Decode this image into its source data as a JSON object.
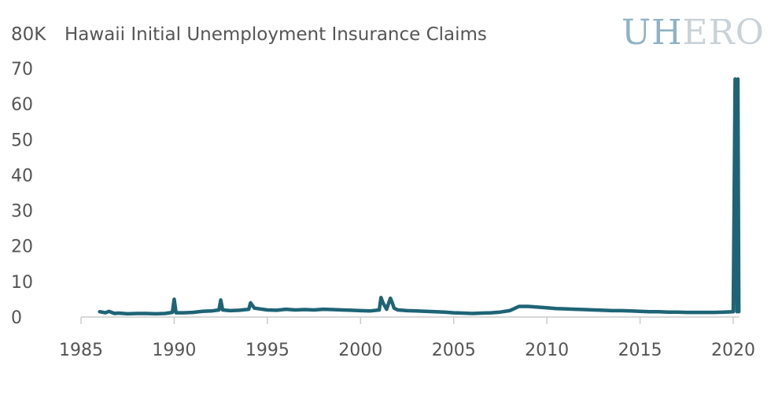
{
  "chart_data": {
    "type": "line",
    "title": "Hawaii Initial Unemployment Insurance Claims",
    "ylabel": "",
    "unit_label": "80K",
    "xlabel": "",
    "x_ticks": [
      1985,
      1990,
      1995,
      2000,
      2005,
      2010,
      2015,
      2020
    ],
    "y_ticks": [
      0,
      10,
      20,
      30,
      40,
      50,
      60,
      70
    ],
    "xlim": [
      1985,
      2020.5
    ],
    "ylim": [
      0,
      80
    ],
    "grid": false,
    "legend": "none",
    "line_color": "#1e6476",
    "series": [
      {
        "x": [
          1986.0,
          1986.3,
          1986.5,
          1986.8,
          1987.0,
          1987.5,
          1988.0,
          1988.5,
          1989.0,
          1989.5,
          1989.9,
          1990.0,
          1990.1,
          1990.5,
          1991.0,
          1991.5,
          1992.0,
          1992.4,
          1992.5,
          1992.6,
          1993.0,
          1993.5,
          1994.0,
          1994.1,
          1994.3,
          1995.0,
          1995.5,
          1996.0,
          1996.5,
          1997.0,
          1997.5,
          1998.0,
          1998.5,
          1999.0,
          1999.5,
          2000.0,
          2000.5,
          2001.0,
          2001.1,
          2001.2,
          2001.4,
          2001.6,
          2001.7,
          2001.8,
          2002.0,
          2002.5,
          2003.0,
          2003.5,
          2004.0,
          2004.5,
          2005.0,
          2005.5,
          2006.0,
          2006.5,
          2007.0,
          2007.5,
          2008.0,
          2008.3,
          2008.5,
          2009.0,
          2009.5,
          2010.0,
          2010.5,
          2011.0,
          2011.5,
          2012.0,
          2012.5,
          2013.0,
          2013.5,
          2014.0,
          2014.5,
          2015.0,
          2015.5,
          2016.0,
          2016.5,
          2017.0,
          2017.5,
          2018.0,
          2018.5,
          2019.0,
          2019.5,
          2020.0,
          2020.1,
          2020.2,
          2020.25,
          2020.3
        ],
        "values": [
          1.5,
          1.2,
          1.6,
          1.0,
          1.1,
          0.9,
          1.0,
          1.0,
          0.9,
          1.0,
          1.3,
          5.0,
          1.2,
          1.2,
          1.3,
          1.6,
          1.7,
          2.0,
          4.8,
          2.0,
          1.8,
          1.9,
          2.2,
          4.0,
          2.5,
          2.0,
          1.9,
          2.2,
          2.0,
          2.1,
          2.0,
          2.2,
          2.1,
          2.0,
          1.9,
          1.8,
          1.7,
          2.0,
          5.5,
          4.0,
          2.2,
          5.3,
          4.0,
          2.5,
          2.0,
          1.8,
          1.7,
          1.6,
          1.5,
          1.4,
          1.2,
          1.1,
          1.0,
          1.1,
          1.2,
          1.4,
          1.8,
          2.5,
          3.0,
          3.0,
          2.8,
          2.6,
          2.4,
          2.3,
          2.2,
          2.1,
          2.0,
          1.9,
          1.8,
          1.8,
          1.7,
          1.6,
          1.5,
          1.5,
          1.4,
          1.4,
          1.3,
          1.3,
          1.3,
          1.3,
          1.4,
          1.5,
          67.0,
          1.5,
          67.0,
          1.5
        ]
      }
    ]
  },
  "brand": {
    "part_a": "UH",
    "part_b": "ERO",
    "color_a": "#8fb3c4",
    "color_b": "#c9d2d7"
  }
}
